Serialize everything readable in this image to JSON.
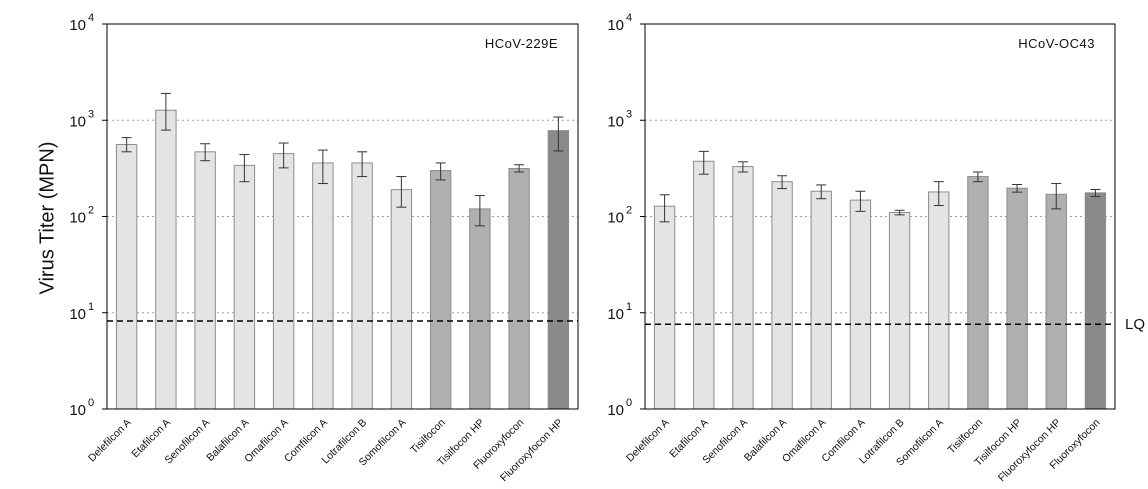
{
  "ylabel": "Virus Titer (MPN)",
  "colors": {
    "light": "#e4e4e4",
    "medium": "#b0b0b0",
    "dark": "#8a8a8a",
    "bar_stroke": "#8c8c8c",
    "grid": "#a0a0a0",
    "lq_line": "#000000"
  },
  "chart_data": [
    {
      "type": "bar",
      "title": "HCoV-229E",
      "ylabel": "Virus Titer (MPN)",
      "yscale": "log",
      "ylim": [
        1,
        10000
      ],
      "y_ticks": [
        {
          "value": 1,
          "base": "10",
          "exp": "0"
        },
        {
          "value": 10,
          "base": "10",
          "exp": "1"
        },
        {
          "value": 100,
          "base": "10",
          "exp": "2"
        },
        {
          "value": 1000,
          "base": "10",
          "exp": "3"
        },
        {
          "value": 10000,
          "base": "10",
          "exp": "4"
        }
      ],
      "grid": "horizontal dotted at 10, 100, 1000",
      "lq": 8.2,
      "lq_label": "",
      "categories": [
        "Delefilcon A",
        "Etafilcon A",
        "Senofilcon A",
        "Balafilcon A",
        "Omafilcon A",
        "Comfilcon A",
        "Lotrafilcon B",
        "Somofilcon A",
        "Tisilfocon",
        "Tisilfocon HP",
        "Fluoroxyfocon",
        "Fluoroxyfocon HP"
      ],
      "values": [
        560,
        1270,
        470,
        340,
        450,
        360,
        360,
        190,
        300,
        120,
        315,
        780
      ],
      "err_low": [
        90,
        480,
        90,
        110,
        130,
        140,
        100,
        65,
        60,
        40,
        25,
        300
      ],
      "err_high": [
        100,
        630,
        100,
        100,
        130,
        130,
        110,
        70,
        60,
        45,
        30,
        300
      ],
      "shade": [
        "light",
        "light",
        "light",
        "light",
        "light",
        "light",
        "light",
        "light",
        "medium",
        "medium",
        "medium",
        "dark"
      ]
    },
    {
      "type": "bar",
      "title": "HCoV-OC43",
      "ylabel": "",
      "yscale": "log",
      "ylim": [
        1,
        10000
      ],
      "y_ticks": [
        {
          "value": 1,
          "base": "10",
          "exp": "0"
        },
        {
          "value": 10,
          "base": "10",
          "exp": "1"
        },
        {
          "value": 100,
          "base": "10",
          "exp": "2"
        },
        {
          "value": 1000,
          "base": "10",
          "exp": "3"
        },
        {
          "value": 10000,
          "base": "10",
          "exp": "4"
        }
      ],
      "grid": "horizontal dotted at 10, 100, 1000",
      "lq": 7.6,
      "lq_label": "LQ",
      "categories": [
        "Delefilcon A",
        "Etafilcon A",
        "Senofilcon A",
        "Balafilcon A",
        "Omafilcon A",
        "Comfilcon A",
        "Lotrafilcon B",
        "Somofilcon A",
        "Tisilfocon",
        "Tisilfocon HP",
        "Fluoroxyfocon HP",
        "Fluoroxyfocon"
      ],
      "values": [
        128,
        375,
        330,
        230,
        183,
        148,
        110,
        180,
        260,
        197,
        170,
        176
      ],
      "err_low": [
        40,
        100,
        40,
        35,
        30,
        35,
        6,
        50,
        30,
        18,
        50,
        15
      ],
      "err_high": [
        40,
        100,
        40,
        35,
        30,
        35,
        6,
        50,
        30,
        18,
        50,
        15
      ],
      "shade": [
        "light",
        "light",
        "light",
        "light",
        "light",
        "light",
        "light",
        "light",
        "medium",
        "medium",
        "medium",
        "dark"
      ]
    }
  ]
}
